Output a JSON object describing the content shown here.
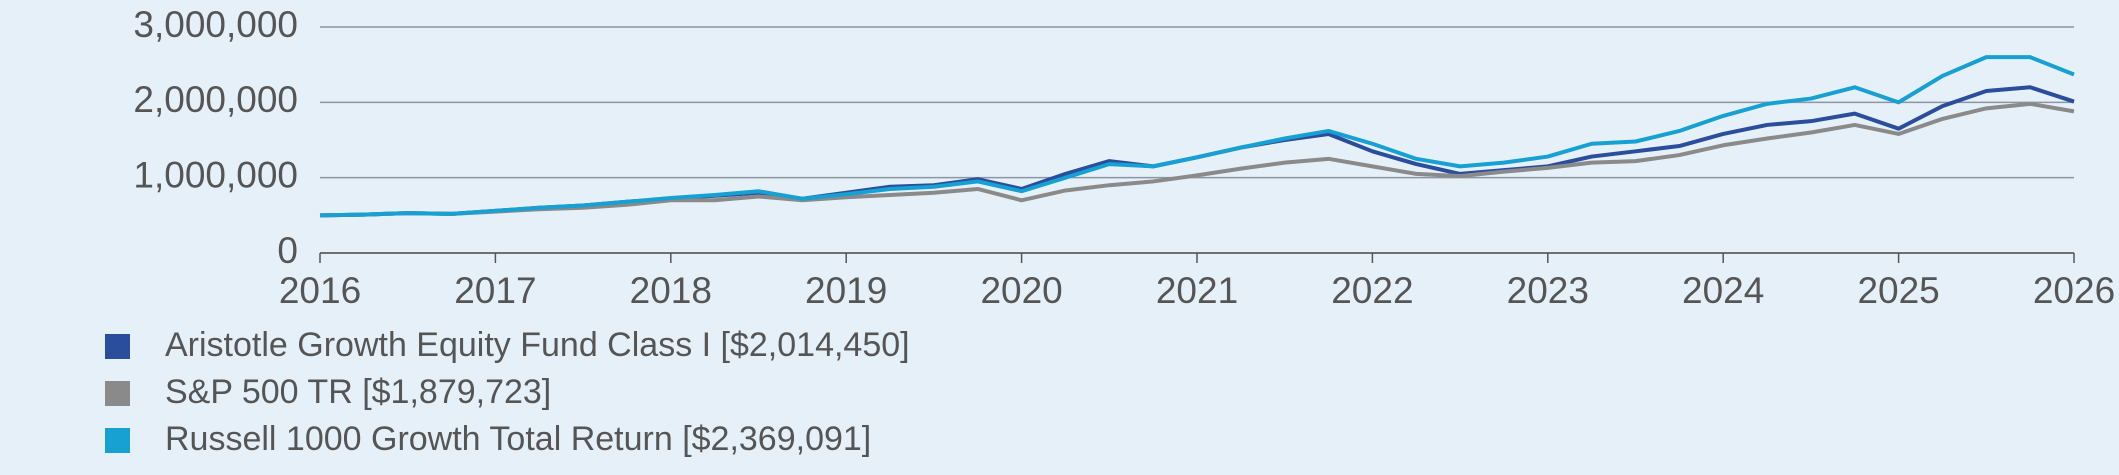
{
  "chart_data": {
    "type": "line",
    "x": [
      2016,
      2016.25,
      2016.5,
      2016.75,
      2017,
      2017.25,
      2017.5,
      2017.75,
      2018,
      2018.25,
      2018.5,
      2018.75,
      2019,
      2019.25,
      2019.5,
      2019.75,
      2020,
      2020.25,
      2020.5,
      2020.75,
      2021,
      2021.25,
      2021.5,
      2021.75,
      2022,
      2022.25,
      2022.5,
      2022.75,
      2023,
      2023.25,
      2023.5,
      2023.75,
      2024,
      2024.25,
      2024.5,
      2024.75,
      2025,
      2025.25,
      2025.5,
      2025.75,
      2026
    ],
    "series": [
      {
        "name": "Aristotle Growth Equity Fund Class I [$2,014,450]",
        "color": "#2a4d9c",
        "values": [
          500000,
          510000,
          530000,
          520000,
          560000,
          600000,
          630000,
          680000,
          720000,
          760000,
          800000,
          720000,
          800000,
          880000,
          900000,
          980000,
          850000,
          1050000,
          1220000,
          1150000,
          1270000,
          1400000,
          1500000,
          1580000,
          1350000,
          1180000,
          1050000,
          1100000,
          1150000,
          1280000,
          1350000,
          1420000,
          1580000,
          1700000,
          1750000,
          1850000,
          1650000,
          1950000,
          2150000,
          2200000,
          2010000
        ]
      },
      {
        "name": "S&P 500 TR [$1,879,723]",
        "color": "#8a8a8a",
        "values": [
          500000,
          510000,
          530000,
          520000,
          550000,
          580000,
          600000,
          640000,
          700000,
          700000,
          750000,
          700000,
          740000,
          770000,
          800000,
          850000,
          700000,
          830000,
          900000,
          950000,
          1030000,
          1120000,
          1200000,
          1250000,
          1150000,
          1050000,
          1020000,
          1080000,
          1130000,
          1200000,
          1220000,
          1300000,
          1430000,
          1520000,
          1600000,
          1700000,
          1580000,
          1780000,
          1920000,
          1980000,
          1880000
        ]
      },
      {
        "name": "Russell 1000 Growth Total Return [$2,369,091]",
        "color": "#17a0d2",
        "values": [
          500000,
          510000,
          530000,
          520000,
          560000,
          600000,
          630000,
          680000,
          730000,
          770000,
          820000,
          720000,
          780000,
          850000,
          880000,
          950000,
          820000,
          1000000,
          1180000,
          1150000,
          1270000,
          1400000,
          1520000,
          1620000,
          1450000,
          1250000,
          1150000,
          1200000,
          1280000,
          1450000,
          1480000,
          1620000,
          1820000,
          1980000,
          2050000,
          2200000,
          2000000,
          2350000,
          2600000,
          2600000,
          2370000
        ]
      }
    ],
    "xlim": [
      2016,
      2026
    ],
    "xticks": [
      2016,
      2017,
      2018,
      2019,
      2020,
      2021,
      2022,
      2023,
      2024,
      2025,
      2026
    ],
    "ylim": [
      0,
      3000000
    ],
    "yticks": [
      0,
      {
        "value": 1000000,
        "label": "1,000,000"
      },
      {
        "value": 2000000,
        "label": "2,000,000"
      },
      {
        "value": 3000000,
        "label": "3,000,000"
      }
    ],
    "grid": true
  }
}
